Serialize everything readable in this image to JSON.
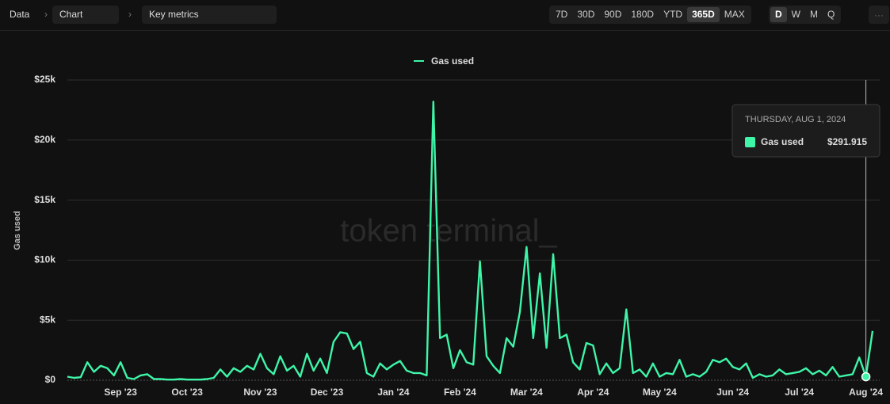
{
  "toolbar": {
    "breadcrumb": [
      "Data",
      "Chart",
      "Key metrics"
    ],
    "ranges": [
      "7D",
      "30D",
      "90D",
      "180D",
      "YTD",
      "365D",
      "MAX"
    ],
    "granularity": [
      "D",
      "W",
      "M",
      "Q"
    ]
  },
  "watermark": "token terminal_",
  "tooltip": {
    "date": "THURSDAY, AUG 1, 2024",
    "label": "Gas used",
    "value": "$291.915"
  },
  "chart_data": {
    "type": "line",
    "ylabel": "Gas used",
    "categories": [
      null,
      null,
      null,
      null,
      null,
      null,
      null,
      null,
      "Sep '23",
      null,
      null,
      null,
      null,
      null,
      null,
      null,
      null,
      null,
      "Oct '23",
      null,
      null,
      null,
      null,
      null,
      null,
      null,
      null,
      null,
      null,
      "Nov '23",
      null,
      null,
      null,
      null,
      null,
      null,
      null,
      null,
      null,
      "Dec '23",
      null,
      null,
      null,
      null,
      null,
      null,
      null,
      null,
      null,
      "Jan '24",
      null,
      null,
      null,
      null,
      null,
      null,
      null,
      null,
      null,
      "Feb '24",
      null,
      null,
      null,
      null,
      null,
      null,
      null,
      null,
      null,
      "Mar '24",
      null,
      null,
      null,
      null,
      null,
      null,
      null,
      null,
      null,
      "Apr '24",
      null,
      null,
      null,
      null,
      null,
      null,
      null,
      null,
      null,
      "May '24",
      null,
      null,
      null,
      null,
      null,
      null,
      null,
      null,
      null,
      null,
      "Jun '24",
      null,
      null,
      null,
      null,
      null,
      null,
      null,
      null,
      null,
      "Jul '24",
      null,
      null,
      null,
      null,
      null,
      null,
      null,
      null,
      null,
      "Aug '24",
      null
    ],
    "series": [
      {
        "name": "Gas used",
        "color": "#3ef5a8",
        "values": [
          300,
          200,
          250,
          1500,
          700,
          1200,
          1000,
          400,
          1500,
          200,
          100,
          400,
          500,
          100,
          100,
          50,
          50,
          100,
          50,
          50,
          50,
          100,
          200,
          900,
          300,
          1000,
          700,
          1200,
          900,
          2200,
          1000,
          500,
          2000,
          800,
          1200,
          300,
          2200,
          800,
          1800,
          600,
          3200,
          4000,
          3900,
          2600,
          3200,
          600,
          300,
          1400,
          900,
          1300,
          1600,
          800,
          600,
          600,
          400,
          23200,
          3500,
          3800,
          1000,
          2500,
          1500,
          1300,
          9900,
          2000,
          1200,
          600,
          3500,
          2800,
          5700,
          11100,
          3500,
          8900,
          2700,
          10500,
          3500,
          3800,
          1500,
          900,
          3100,
          2900,
          500,
          1400,
          600,
          1000,
          5900,
          600,
          900,
          300,
          1400,
          300,
          600,
          500,
          1700,
          300,
          500,
          300,
          700,
          1700,
          1500,
          1800,
          1100,
          900,
          1400,
          200,
          500,
          300,
          400,
          900,
          500,
          600,
          700,
          1000,
          500,
          800,
          400,
          1100,
          300,
          400,
          500,
          1900,
          291.915,
          4100
        ]
      }
    ],
    "ylim": [
      0,
      25000
    ],
    "yticks": [
      {
        "value": 0,
        "label": "$0"
      },
      {
        "value": 5000,
        "label": "$5k"
      },
      {
        "value": 10000,
        "label": "$10k"
      },
      {
        "value": 15000,
        "label": "$15k"
      },
      {
        "value": 20000,
        "label": "$20k"
      },
      {
        "value": 25000,
        "label": "$25k"
      }
    ],
    "grid": true
  }
}
